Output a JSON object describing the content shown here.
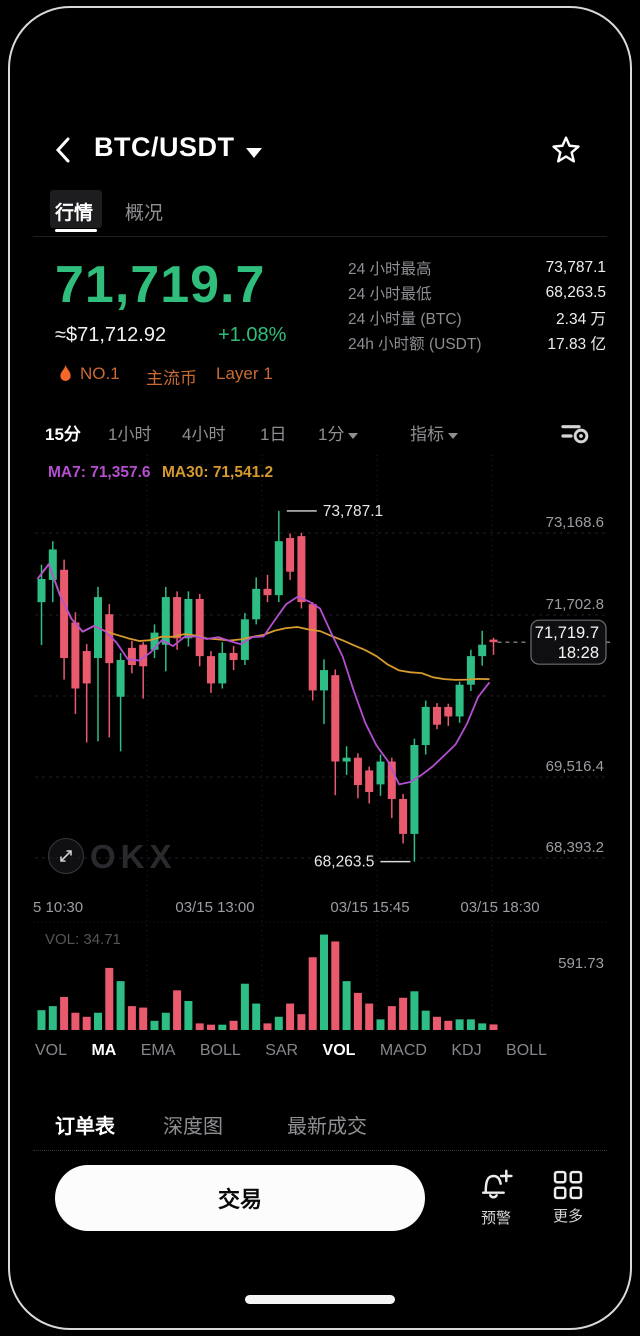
{
  "header": {
    "title": "BTC/USDT"
  },
  "page_tabs": [
    {
      "label": "行情"
    },
    {
      "label": "概况"
    }
  ],
  "price": {
    "last": "71,719.7",
    "fiat": "≈$71,712.92",
    "change": "+1.08%"
  },
  "badges": {
    "rank": "NO.1",
    "tag1": "主流币",
    "tag2": "Layer 1"
  },
  "stats": {
    "rows": [
      {
        "label": "24 小时最高",
        "value": "73,787.1"
      },
      {
        "label": "24 小时最低",
        "value": "68,263.5"
      },
      {
        "label": "24 小时量 (BTC)",
        "value": "2.34 万"
      },
      {
        "label": "24h 小时额 (USDT)",
        "value": "17.83 亿"
      }
    ]
  },
  "timeframes": [
    "15分",
    "1小时",
    "4小时",
    "1日",
    "1分",
    "指标"
  ],
  "indicators": [
    "VOL",
    "MA",
    "EMA",
    "BOLL",
    "SAR",
    "VOL",
    "MACD",
    "KDJ",
    "BOLL"
  ],
  "bottom_tabs": [
    "订单表",
    "深度图",
    "最新成交"
  ],
  "actions": {
    "trade": "交易",
    "alert": "预警",
    "more": "更多"
  },
  "watermark": "OKX",
  "colors": {
    "up": "#2EBD85",
    "down": "#EA5A6F",
    "ma7": "#B44FD0",
    "ma30": "#D79A2F",
    "accent_orange": "#C96B33",
    "price_green": "#2FBE7B",
    "axis_text": "#9C9CA3",
    "grid": "#222228",
    "vol_label": "#55555A"
  },
  "chart_data": {
    "type": "candlestick",
    "interval": "15m",
    "ma_overlays": [
      {
        "name": "MA7",
        "value": "71,357.6",
        "color": "#B44FD0"
      },
      {
        "name": "MA30",
        "value": "71,541.2",
        "color": "#D79A2F"
      }
    ],
    "y_axis_labels": [
      "73,168.6",
      "71,702.8",
      "69,516.4",
      "68,393.2"
    ],
    "x_axis_labels": [
      "5 10:30",
      "03/15 13:00",
      "03/15 15:45",
      "03/15 18:30"
    ],
    "high_annotation": "73,787.1",
    "low_annotation": "68,263.5",
    "last_price_tag": {
      "price": "71,719.7",
      "time": "18:28"
    },
    "volume_pane": {
      "label": "VOL: 34.71",
      "scale_max": "591.73"
    },
    "y_range": [
      68100,
      74400
    ],
    "candles": [
      [
        72350,
        72940,
        71675,
        72715
      ],
      [
        72700,
        73310,
        72350,
        73180
      ],
      [
        72860,
        73020,
        71130,
        71470
      ],
      [
        72030,
        72190,
        70590,
        70990
      ],
      [
        71580,
        71690,
        70140,
        71070
      ],
      [
        71470,
        72590,
        70160,
        72430
      ],
      [
        72160,
        72320,
        70220,
        71390
      ],
      [
        70860,
        71550,
        70000,
        71440
      ],
      [
        71630,
        71740,
        71230,
        71360
      ],
      [
        71680,
        71720,
        70830,
        71340
      ],
      [
        71600,
        72000,
        71470,
        71870
      ],
      [
        71680,
        72590,
        71260,
        72430
      ],
      [
        72430,
        72520,
        71600,
        71780
      ],
      [
        71780,
        72520,
        71650,
        72400
      ],
      [
        72400,
        72480,
        71340,
        71500
      ],
      [
        71500,
        71580,
        70920,
        71070
      ],
      [
        71070,
        71720,
        70990,
        71550
      ],
      [
        71550,
        71660,
        71280,
        71440
      ],
      [
        71440,
        72180,
        71360,
        72080
      ],
      [
        72080,
        72740,
        72000,
        72560
      ],
      [
        72560,
        72780,
        72350,
        72460
      ],
      [
        72460,
        73787.1,
        72350,
        73310
      ],
      [
        73360,
        73430,
        72700,
        72830
      ],
      [
        73390,
        73440,
        72250,
        72350
      ],
      [
        72320,
        72350,
        70800,
        70960
      ],
      [
        70960,
        71450,
        70430,
        71280
      ],
      [
        71200,
        71290,
        69310,
        69840
      ],
      [
        69840,
        70080,
        69630,
        69900
      ],
      [
        69900,
        69970,
        69260,
        69470
      ],
      [
        69700,
        69760,
        69180,
        69360
      ],
      [
        69480,
        69950,
        69300,
        69840
      ],
      [
        69840,
        69900,
        68950,
        69250
      ],
      [
        69250,
        69330,
        68550,
        68700
      ],
      [
        68700,
        70200,
        68263.5,
        70100
      ],
      [
        70100,
        70800,
        69950,
        70700
      ],
      [
        70700,
        70760,
        70350,
        70420
      ],
      [
        70700,
        70750,
        70400,
        70550
      ],
      [
        70550,
        71100,
        70450,
        71050
      ],
      [
        71050,
        71600,
        70950,
        71500
      ],
      [
        71500,
        71900,
        71350,
        71680
      ],
      [
        71760,
        71790,
        71520,
        71719.7
      ]
    ],
    "volumes": [
      123,
      148,
      205,
      107,
      82,
      107,
      385,
      303,
      148,
      139,
      57,
      107,
      246,
      180,
      41,
      33,
      33,
      57,
      287,
      164,
      41,
      82,
      164,
      98,
      451,
      591.73,
      549,
      303,
      230,
      164,
      66,
      148,
      200,
      240,
      120,
      82,
      57,
      66,
      66,
      41,
      34.71
    ]
  }
}
